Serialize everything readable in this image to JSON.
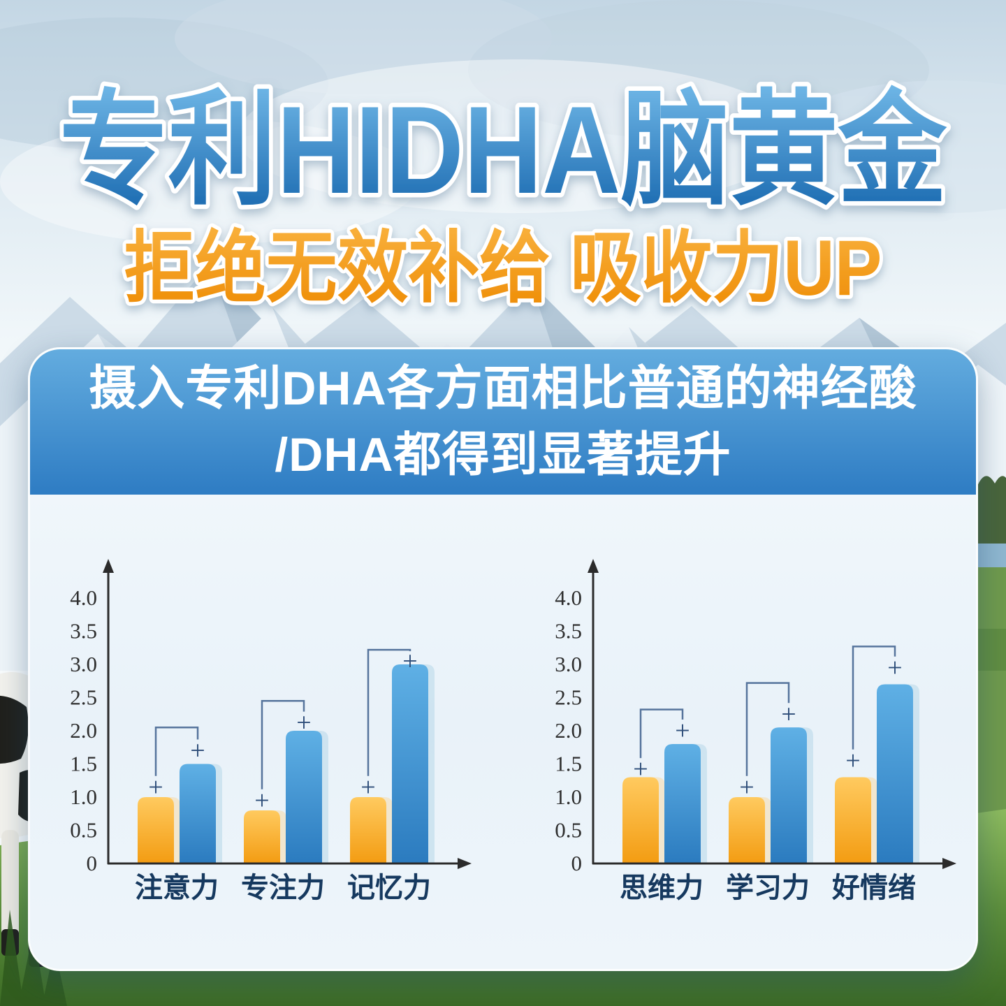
{
  "header": {
    "title": "专利HIDHA脑黄金",
    "subtitle": "拒绝无效补给 吸收力UP"
  },
  "card": {
    "header_line1": "摄入专利DHA各方面相比普通的神经酸",
    "header_line2": "/DHA都得到显著提升"
  },
  "colors": {
    "title_gradient_top": "#72b9e8",
    "title_gradient_bottom": "#1565ad",
    "subtitle_gradient_top": "#f9b13d",
    "subtitle_gradient_bottom": "#ee8c05",
    "header_blue_top": "#63acdf",
    "header_blue_bottom": "#2e7cc3",
    "card_header_text": "#ffffff",
    "bar_orange_top": "#ffca5f",
    "bar_orange_bottom": "#f39c12",
    "bar_orange_ghost": "#f7d9a4",
    "bar_blue_top": "#5fb0e5",
    "bar_blue_bottom": "#2b7bbf",
    "bar_blue_ghost": "#b7d7ea",
    "category_text": "#16395f",
    "axis": "#2b2b2b",
    "bracket": "#56749c",
    "plus_mark": "#2d4d79"
  },
  "chart_data": [
    {
      "type": "bar",
      "categories": [
        "注意力",
        "专注力",
        "记忆力"
      ],
      "series": [
        {
          "name": "orange",
          "values": [
            1.0,
            0.8,
            1.0
          ]
        },
        {
          "name": "blue",
          "values": [
            1.5,
            2.0,
            3.0
          ]
        }
      ],
      "ytick_labels": [
        "0",
        "0.5",
        "1.0",
        "1.5",
        "2.0",
        "2.5",
        "3.0",
        "3.5",
        "4.0"
      ],
      "ylim": [
        0,
        4.4
      ],
      "grid": false,
      "legend": false,
      "annotations": {
        "symbol": "+",
        "plus_above_orange": [
          1.15,
          0.95,
          1.15
        ],
        "plus_above_blue": [
          1.7,
          2.12,
          3.05
        ],
        "bracket_top": [
          2.05,
          2.45,
          3.22
        ]
      }
    },
    {
      "type": "bar",
      "categories": [
        "思维力",
        "学习力",
        "好情绪"
      ],
      "series": [
        {
          "name": "orange",
          "values": [
            1.3,
            1.0,
            1.3
          ]
        },
        {
          "name": "blue",
          "values": [
            1.8,
            2.05,
            2.7
          ]
        }
      ],
      "ytick_labels": [
        "0",
        "0.5",
        "1.0",
        "1.5",
        "2.0",
        "2.5",
        "3.0",
        "3.5",
        "4.0"
      ],
      "ylim": [
        0,
        4.4
      ],
      "grid": false,
      "legend": false,
      "annotations": {
        "symbol": "+",
        "plus_above_orange": [
          1.42,
          1.15,
          1.55
        ],
        "plus_above_blue": [
          2.0,
          2.25,
          2.95
        ],
        "bracket_top": [
          2.32,
          2.72,
          3.27
        ]
      }
    }
  ]
}
